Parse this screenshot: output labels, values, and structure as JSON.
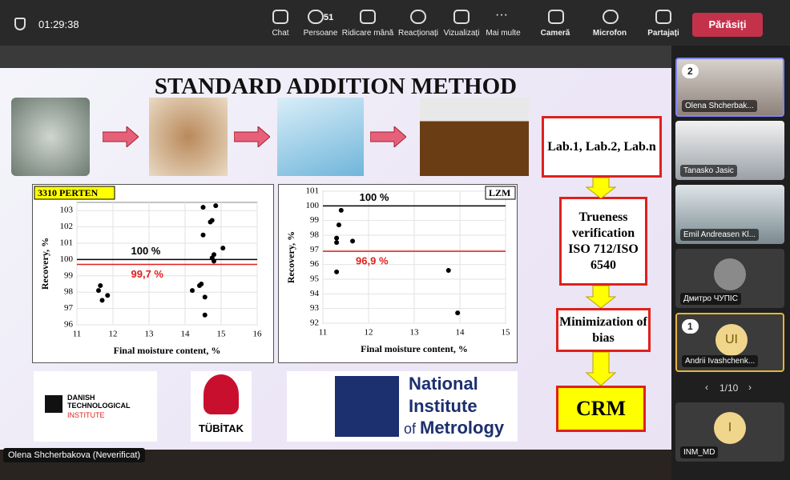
{
  "toolbar": {
    "time": "01:29:38",
    "buttons": [
      {
        "label": "Chat"
      },
      {
        "label": "Persoane",
        "count": 51
      },
      {
        "label": "Ridicare mână"
      },
      {
        "label": "Reacționați"
      },
      {
        "label": "Vizualizați"
      },
      {
        "label": "Mai multe"
      },
      {
        "label": "Cameră"
      },
      {
        "label": "Microfon"
      },
      {
        "label": "Partajați"
      }
    ],
    "leave": "Părăsiți"
  },
  "slide": {
    "title": "STANDARD ADDITION METHOD",
    "charts": [
      {
        "type": "scatter",
        "label": "3310 PERTEN",
        "x_label": "Final moisture content, %",
        "y_label": "Recovery, %",
        "color": "#000000",
        "x": [
          11.6,
          11.65,
          11.7,
          11.85,
          14.2,
          14.4,
          14.45,
          14.55,
          14.55,
          14.5,
          14.5,
          14.7,
          14.75,
          14.85,
          14.75,
          14.8,
          14.8,
          15.05
        ],
        "y": [
          98.1,
          98.4,
          97.5,
          97.8,
          98.1,
          98.4,
          98.5,
          97.7,
          96.6,
          103.2,
          101.5,
          102.3,
          102.4,
          103.3,
          100.1,
          100.3,
          99.9,
          100.7
        ],
        "xlim": [
          11,
          16
        ],
        "xticks": [
          11,
          12,
          13,
          14,
          15,
          16
        ],
        "ylim": [
          96,
          103.5
        ],
        "yticks": [
          96,
          97,
          98,
          99,
          100,
          101,
          102,
          103
        ],
        "grid": true,
        "reference_lines": [
          {
            "value": 100,
            "label": "100 %",
            "color": "#000000"
          },
          {
            "value": 99.7,
            "label": "99,7 %",
            "color": "#e0201c"
          }
        ]
      },
      {
        "type": "scatter",
        "label": "LZM",
        "x_label": "Final moisture content, %",
        "y_label": "Recovery, %",
        "color": "#000000",
        "x": [
          11.3,
          11.3,
          11.35,
          11.4,
          11.65,
          11.3,
          13.75,
          13.95
        ],
        "y": [
          97.8,
          97.5,
          98.7,
          99.7,
          97.6,
          95.5,
          95.6,
          92.7
        ],
        "xlim": [
          11,
          15
        ],
        "xticks": [
          11,
          12,
          13,
          14,
          15
        ],
        "ylim": [
          92,
          101
        ],
        "yticks": [
          92,
          93,
          94,
          95,
          96,
          97,
          98,
          99,
          100,
          101
        ],
        "grid": true,
        "reference_lines": [
          {
            "value": 100,
            "label": "100 %",
            "color": "#000000"
          },
          {
            "value": 96.9,
            "label": "96,9 %",
            "color": "#e0201c"
          }
        ]
      }
    ],
    "flow": [
      "Lab.1, Lab.2, Lab.n",
      "Trueness verification ISO 712/ISO 6540",
      "Minimization of bias",
      "CRM"
    ],
    "logos": {
      "danish": "DANISH TECHNOLOGICAL",
      "danish_sub": "INSTITUTE",
      "tubitak": "TÜBİTAK",
      "inm": "National Institute",
      "inm_of": "of",
      "inm_metrology": "Metrology"
    }
  },
  "participants": [
    {
      "name": "Olena Shcherbak...",
      "raised_hand": 2
    },
    {
      "name": "Tanasko Jasic"
    },
    {
      "name": "Emil Andreasen Kl..."
    },
    {
      "name": "Дмитро ЧУПІС"
    },
    {
      "name": "Andrii Ivashchenk...",
      "initials": "UI",
      "raised_hand": 1
    },
    {
      "name": "INM_MD",
      "initials": "I"
    }
  ],
  "pager": "1/10",
  "presenter": "Olena Shcherbakova (Neverificat)"
}
